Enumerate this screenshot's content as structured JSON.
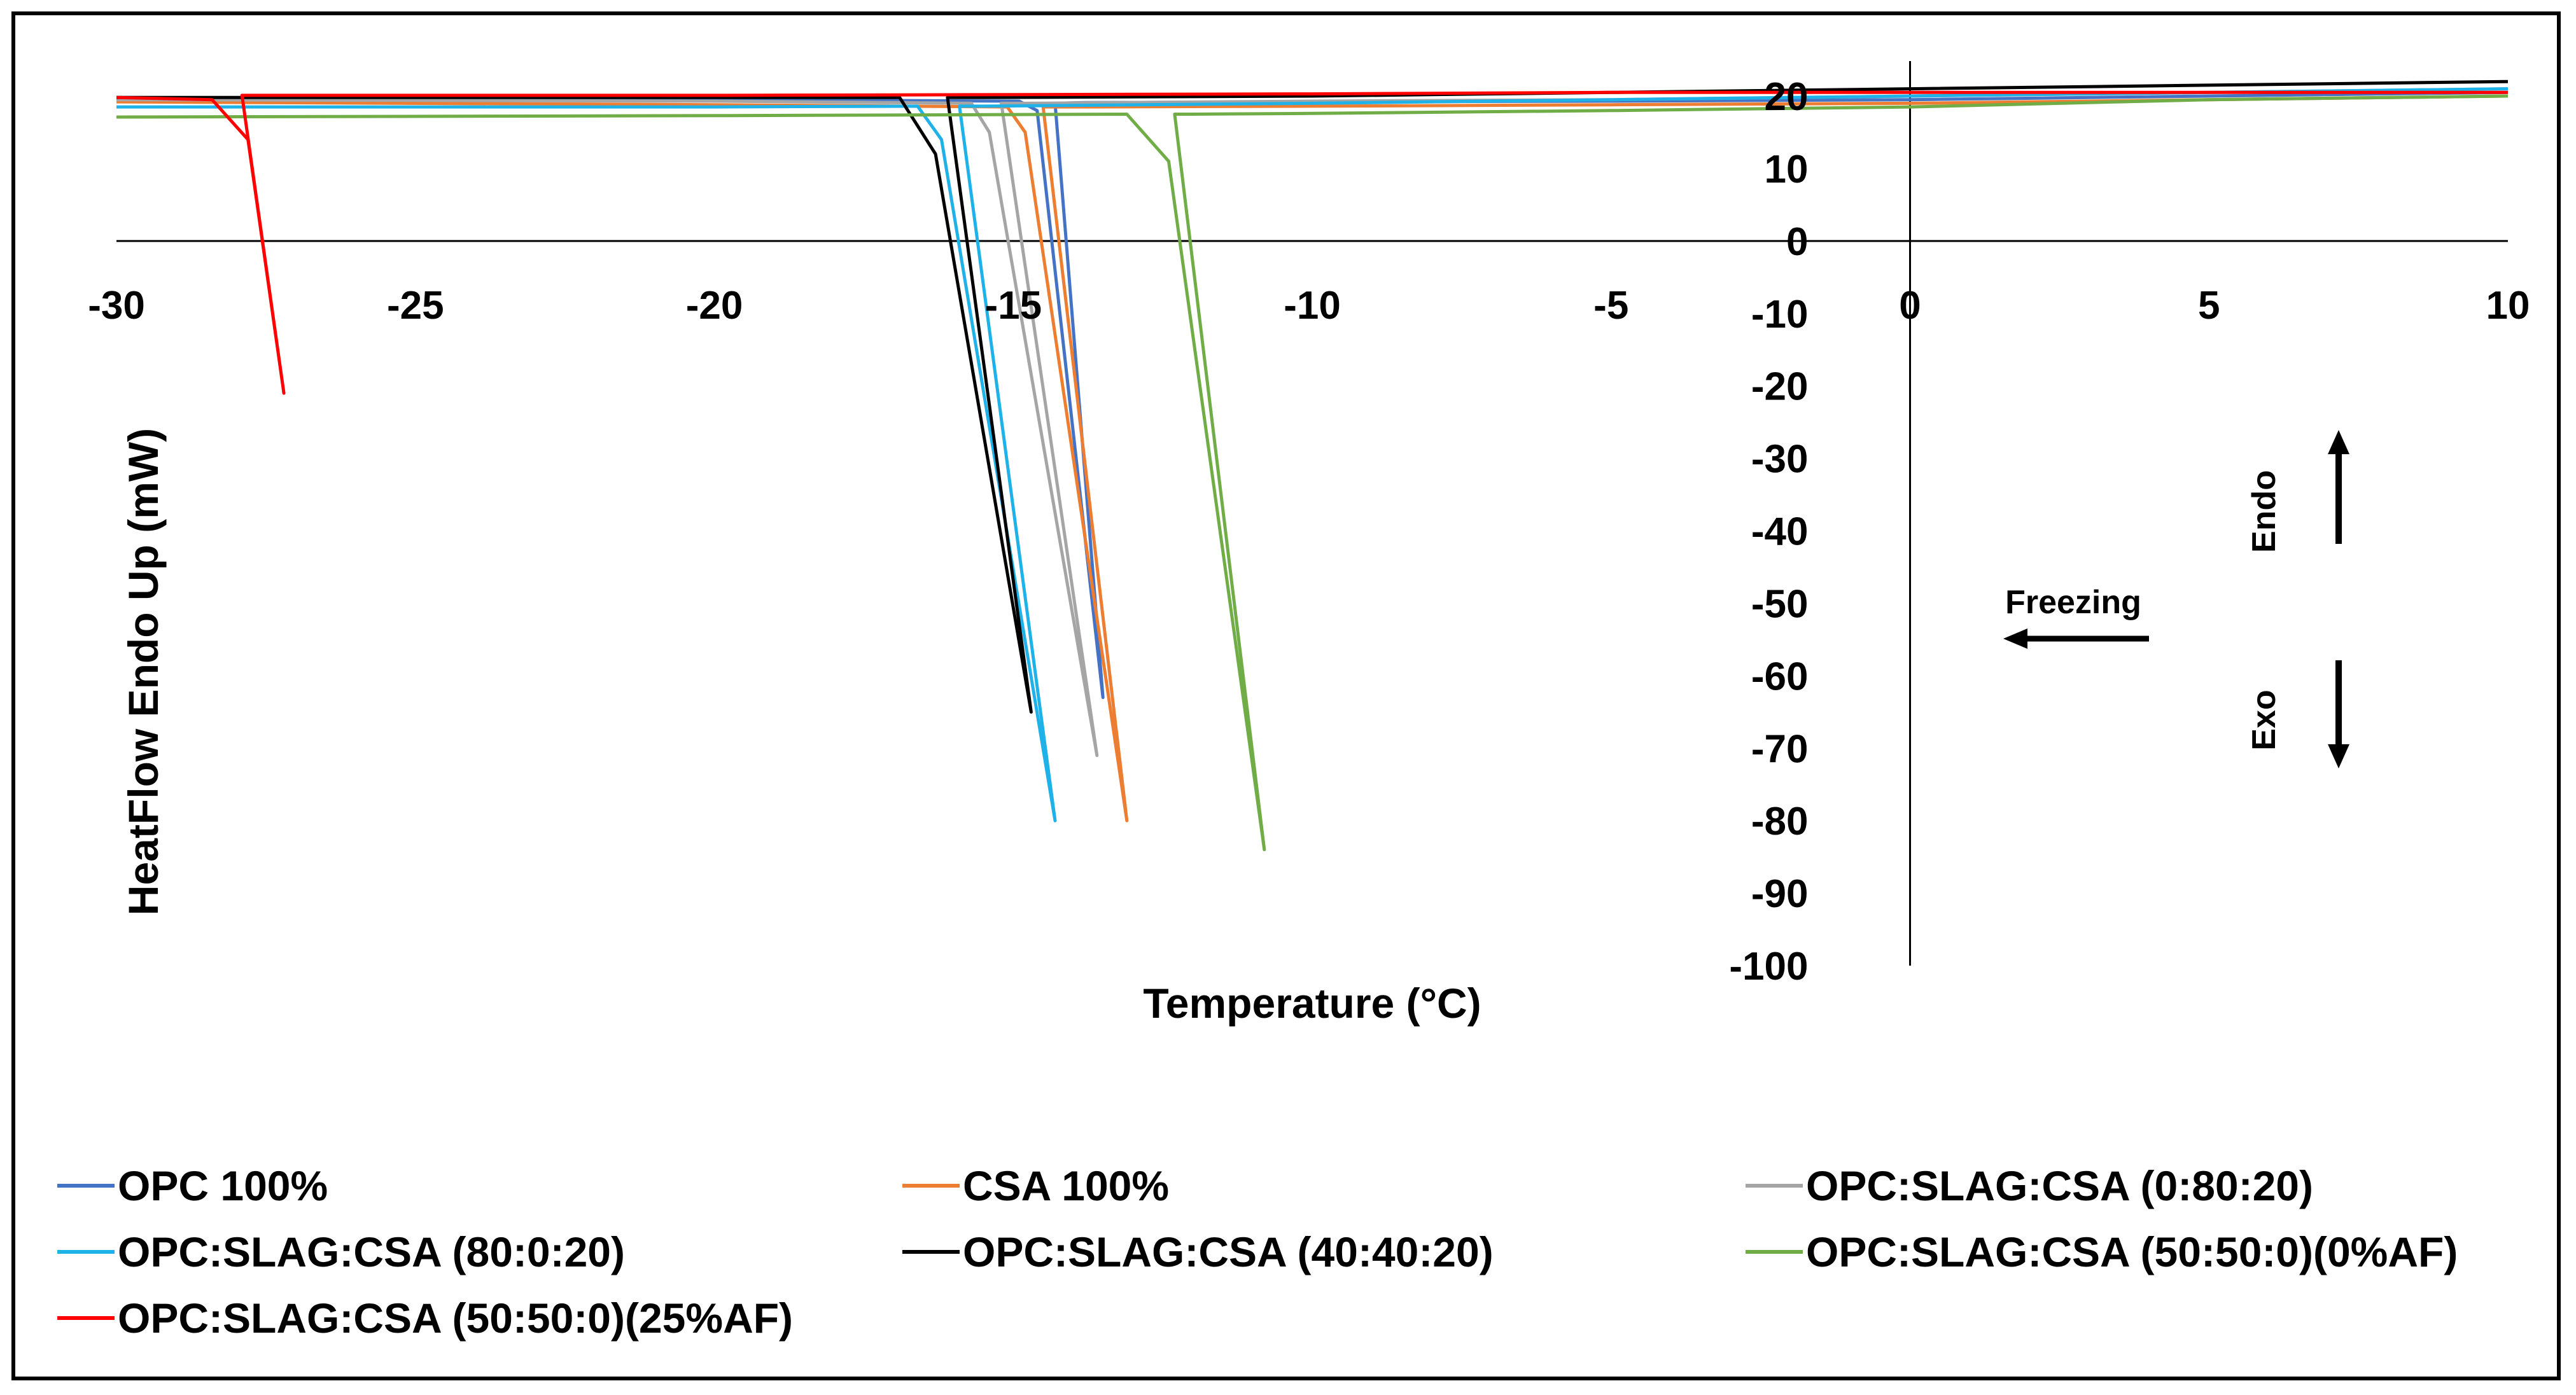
{
  "chart_data": {
    "type": "line",
    "title": "",
    "xlabel": "Temperature (°C)",
    "ylabel": "HeatFlow Endo Up (mW)",
    "xlim": [
      -30,
      10
    ],
    "ylim": [
      -100,
      20
    ],
    "x_ticks": [
      -30,
      -25,
      -20,
      -15,
      -10,
      -5,
      0,
      5,
      10
    ],
    "y_ticks": [
      20,
      10,
      0,
      -10,
      -20,
      -30,
      -40,
      -50,
      -60,
      -70,
      -80,
      -90,
      -100
    ],
    "grid": false,
    "legend_position": "bottom",
    "annotations": {
      "endo": "Endo",
      "exo": "Exo",
      "freezing": "Freezing"
    },
    "series": [
      {
        "name": "OPC 100%",
        "color": "#4472C4",
        "points": [
          [
            10,
            20.5
          ],
          [
            5,
            20
          ],
          [
            0,
            19.5
          ],
          [
            -5,
            19.3
          ],
          [
            -10,
            19.2
          ],
          [
            -13.8,
            19.1
          ],
          [
            -14.3,
            19
          ],
          [
            -13.5,
            -63
          ],
          [
            -14.6,
            18
          ],
          [
            -14.9,
            19.3
          ],
          [
            -20,
            19.5
          ],
          [
            -30,
            19.8
          ]
        ]
      },
      {
        "name": "CSA 100%",
        "color": "#ED7D31",
        "points": [
          [
            10,
            20
          ],
          [
            5,
            19.5
          ],
          [
            0,
            19
          ],
          [
            -5,
            18.8
          ],
          [
            -10,
            18.6
          ],
          [
            -13.8,
            18.5
          ],
          [
            -14.5,
            18.5
          ],
          [
            -13.1,
            -80
          ],
          [
            -14.8,
            15
          ],
          [
            -15.1,
            18.5
          ],
          [
            -20,
            18.8
          ],
          [
            -30,
            19.2
          ]
        ]
      },
      {
        "name": "OPC:SLAG:CSA (0:80:20)",
        "color": "#A5A5A5",
        "points": [
          [
            10,
            21
          ],
          [
            5,
            20.5
          ],
          [
            0,
            20
          ],
          [
            -5,
            19.5
          ],
          [
            -10,
            19.3
          ],
          [
            -14.8,
            19
          ],
          [
            -15.2,
            19
          ],
          [
            -13.6,
            -71
          ],
          [
            -15.4,
            15
          ],
          [
            -15.7,
            19
          ],
          [
            -20,
            19.3
          ],
          [
            -30,
            19.5
          ]
        ]
      },
      {
        "name": "OPC:SLAG:CSA (80:0:20)",
        "color": "#1FB2E8",
        "points": [
          [
            10,
            21
          ],
          [
            5,
            20.5
          ],
          [
            0,
            20
          ],
          [
            -5,
            19.5
          ],
          [
            -10,
            19
          ],
          [
            -15.5,
            18.6
          ],
          [
            -15.9,
            18.6
          ],
          [
            -14.3,
            -80
          ],
          [
            -16.2,
            14
          ],
          [
            -16.6,
            18.6
          ],
          [
            -20,
            18.5
          ],
          [
            -30,
            18.5
          ]
        ]
      },
      {
        "name": "OPC:SLAG:CSA (40:40:20)",
        "color": "#000000",
        "points": [
          [
            10,
            22
          ],
          [
            5,
            21.5
          ],
          [
            0,
            21
          ],
          [
            -5,
            20.5
          ],
          [
            -10,
            20
          ],
          [
            -15.5,
            19.8
          ],
          [
            -16.1,
            19.8
          ],
          [
            -14.7,
            -65
          ],
          [
            -16.3,
            12
          ],
          [
            -16.9,
            19.8
          ],
          [
            -20,
            19.8
          ],
          [
            -30,
            19.8
          ]
        ]
      },
      {
        "name": "OPC:SLAG:CSA (50:50:0)(0%AF)",
        "color": "#70AD47",
        "points": [
          [
            10,
            20
          ],
          [
            5,
            19.5
          ],
          [
            0,
            18.5
          ],
          [
            -5,
            18
          ],
          [
            -10,
            17.6
          ],
          [
            -12,
            17.5
          ],
          [
            -12.3,
            17.5
          ],
          [
            -10.8,
            -84
          ],
          [
            -12.4,
            11
          ],
          [
            -13.1,
            17.5
          ],
          [
            -20,
            17.3
          ],
          [
            -30,
            17.1
          ]
        ]
      },
      {
        "name": "OPC:SLAG:CSA (50:50:0)(25%AF)",
        "color": "#FF0000",
        "points": [
          [
            10,
            20.5
          ],
          [
            5,
            20.5
          ],
          [
            0,
            20.5
          ],
          [
            -5,
            20.5
          ],
          [
            -10,
            20.3
          ],
          [
            -20,
            20.1
          ],
          [
            -27.9,
            20.1
          ],
          [
            -27.2,
            -21
          ],
          [
            -27.8,
            14
          ],
          [
            -28.4,
            19.5
          ],
          [
            -30,
            19.8
          ]
        ]
      }
    ]
  }
}
